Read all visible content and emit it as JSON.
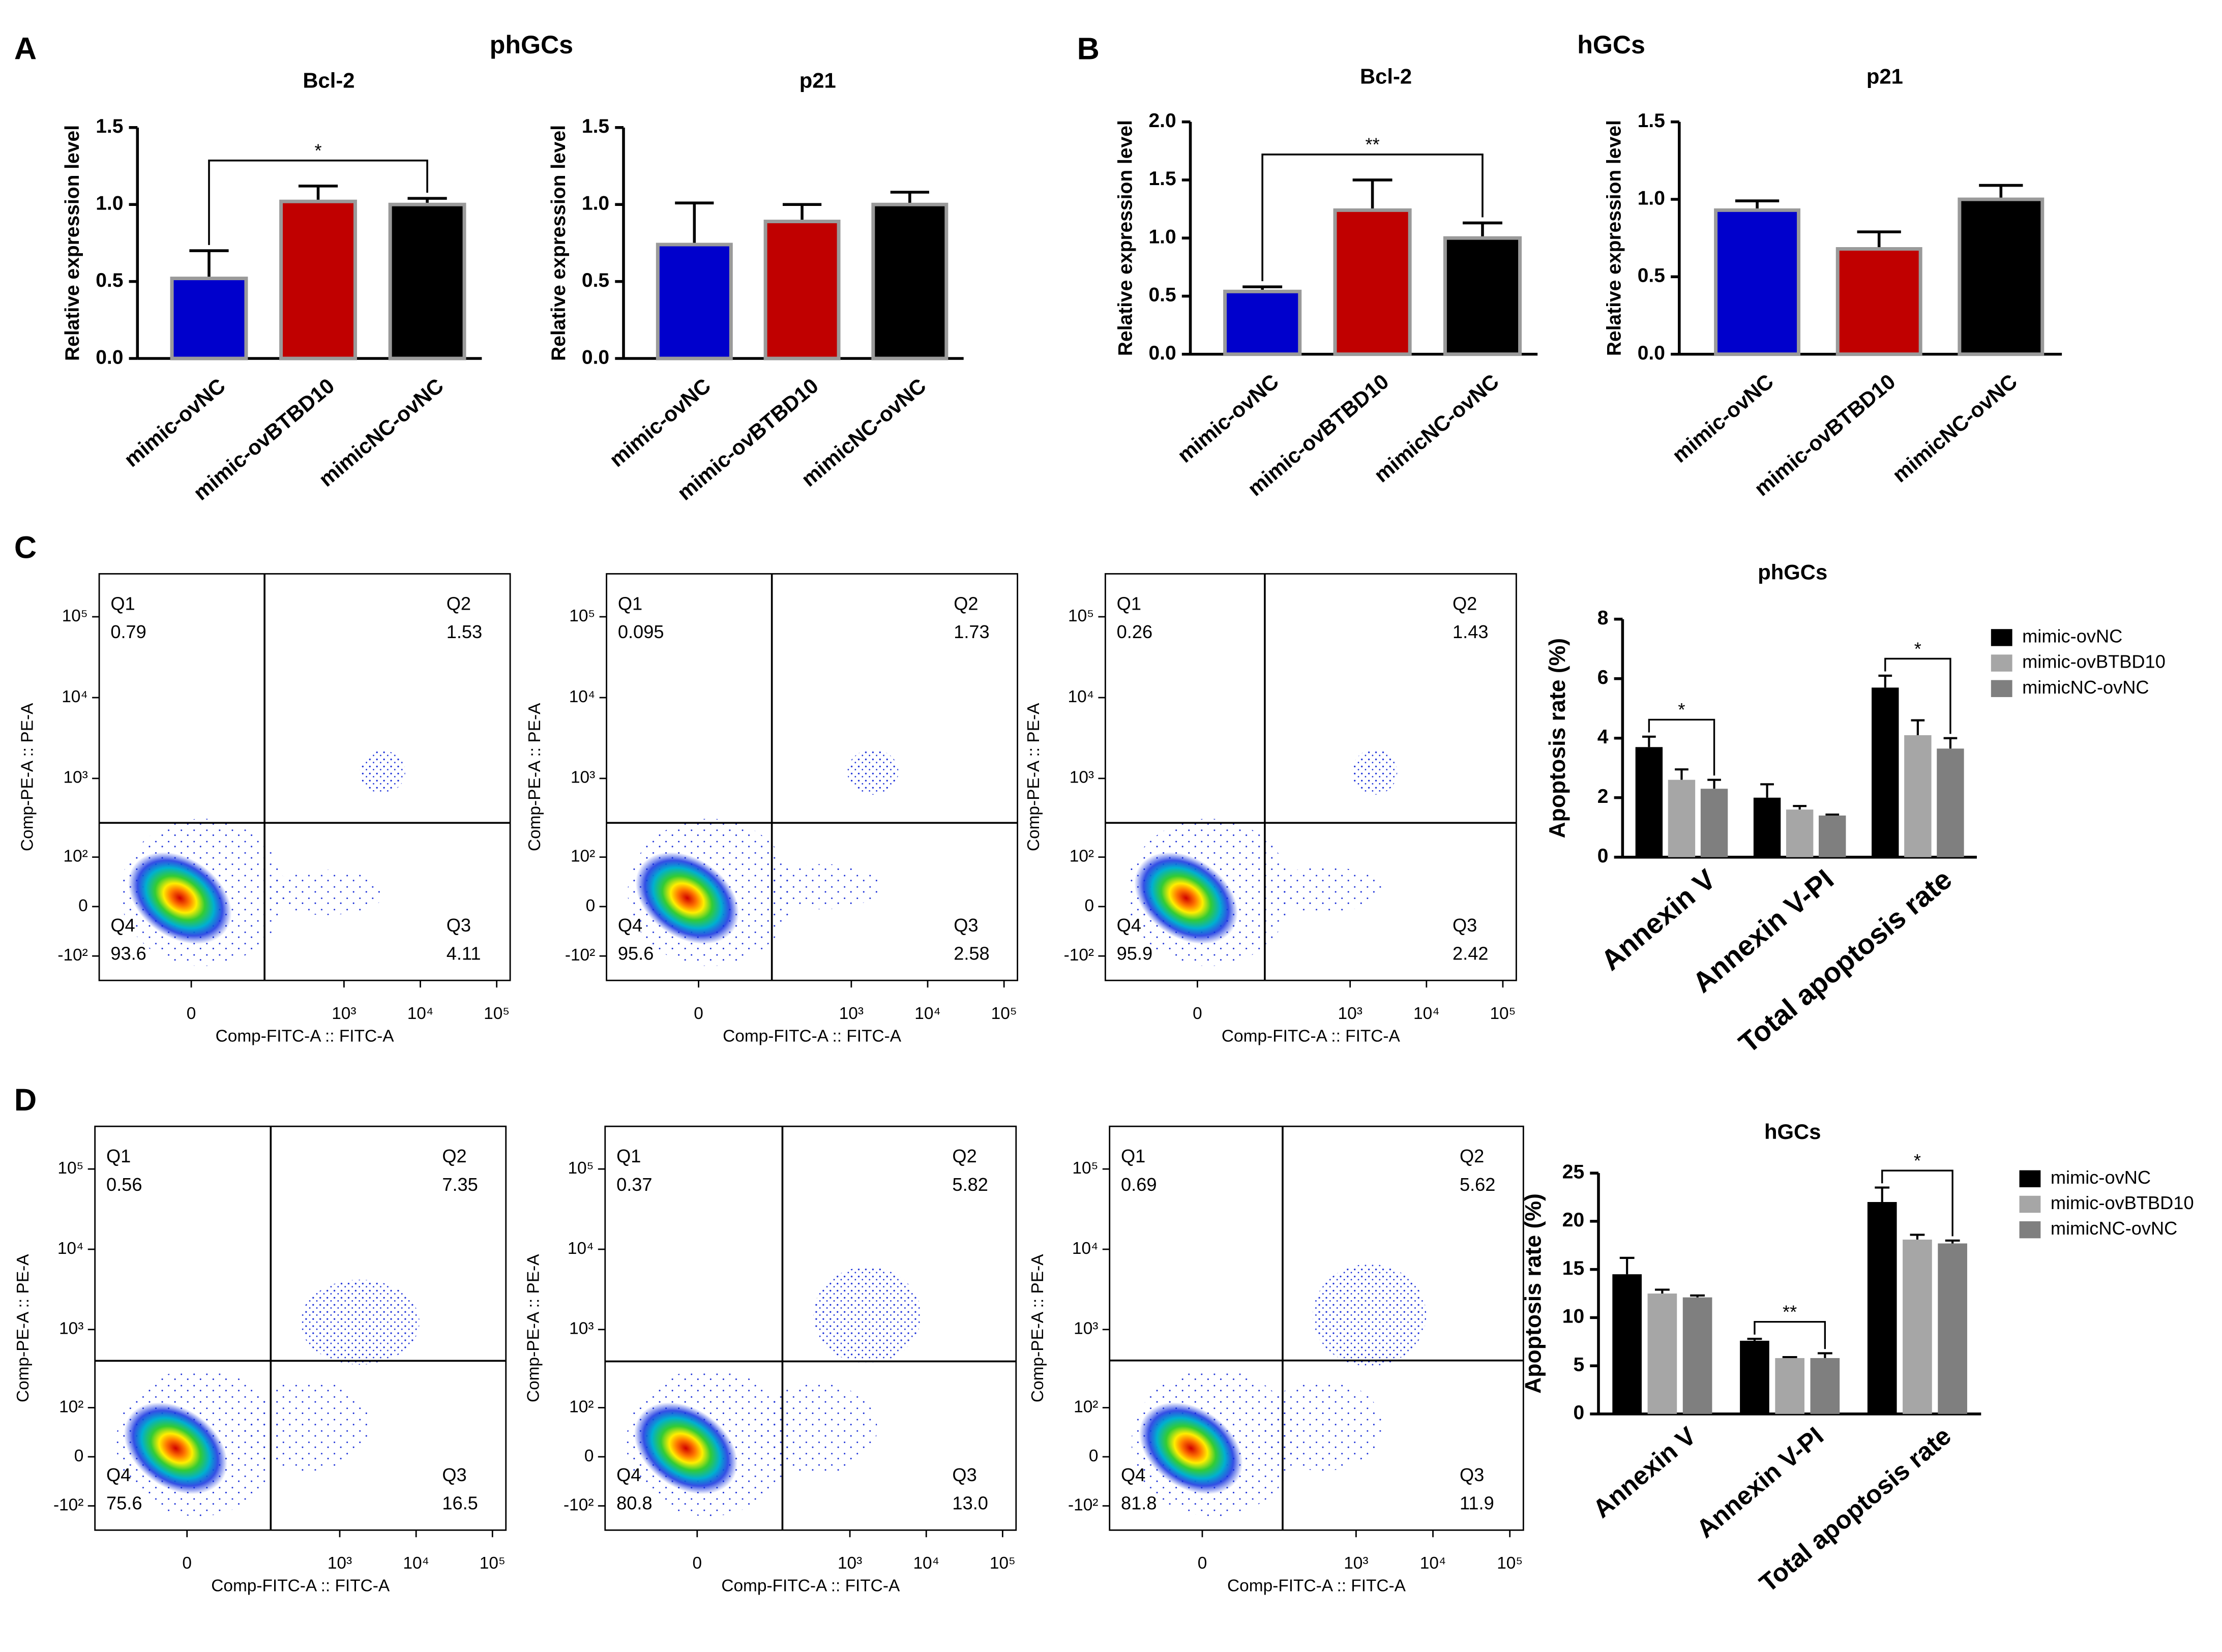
{
  "panels": [
    {
      "label": "A",
      "title": "phGCs"
    },
    {
      "label": "B",
      "title": "hGCs"
    },
    {
      "label": "C"
    },
    {
      "label": "D"
    }
  ],
  "chart_data": [
    {
      "type": "bar",
      "title": "Bcl-2",
      "ylabel": "Relative expression level",
      "categories": [
        "mimic-ovNC",
        "mimic-ovBTBD10",
        "mimicNC-ovNC"
      ],
      "values": [
        0.52,
        1.02,
        1.0
      ],
      "errors": [
        0.18,
        0.1,
        0.04
      ],
      "colors": [
        "#0000cc",
        "#c00000",
        "#000000"
      ],
      "ylim": [
        0,
        1.5
      ],
      "yticks": [
        {
          "value": 0,
          "label": "0.0"
        },
        {
          "value": 0.5,
          "label": "0.5"
        },
        {
          "value": 1,
          "label": "1.0"
        },
        {
          "value": 1.5,
          "label": "1.5"
        }
      ],
      "significance": [
        {
          "from": 0,
          "to": 2,
          "label": "*"
        }
      ]
    },
    {
      "type": "bar",
      "title": "p21",
      "ylabel": "Relative expression level",
      "categories": [
        "mimic-ovNC",
        "mimic-ovBTBD10",
        "mimicNC-ovNC"
      ],
      "values": [
        0.74,
        0.89,
        1.0
      ],
      "errors": [
        0.27,
        0.11,
        0.08
      ],
      "colors": [
        "#0000cc",
        "#c00000",
        "#000000"
      ],
      "ylim": [
        0,
        1.5
      ],
      "yticks": [
        {
          "value": 0,
          "label": "0.0"
        },
        {
          "value": 0.5,
          "label": "0.5"
        },
        {
          "value": 1,
          "label": "1.0"
        },
        {
          "value": 1.5,
          "label": "1.5"
        }
      ]
    },
    {
      "type": "bar",
      "title": "Bcl-2",
      "ylabel": "Relative expression level",
      "categories": [
        "mimic-ovNC",
        "mimic-ovBTBD10",
        "mimicNC-ovNC"
      ],
      "values": [
        0.54,
        1.24,
        1.0
      ],
      "errors": [
        0.04,
        0.26,
        0.13
      ],
      "colors": [
        "#0000cc",
        "#c00000",
        "#000000"
      ],
      "ylim": [
        0,
        2
      ],
      "yticks": [
        {
          "value": 0,
          "label": "0.0"
        },
        {
          "value": 0.5,
          "label": "0.5"
        },
        {
          "value": 1,
          "label": "1.0"
        },
        {
          "value": 1.5,
          "label": "1.5"
        },
        {
          "value": 2,
          "label": "2.0"
        }
      ],
      "significance": [
        {
          "from": 0,
          "to": 2,
          "label": "**"
        }
      ]
    },
    {
      "type": "bar",
      "title": "p21",
      "ylabel": "Relative expression level",
      "categories": [
        "mimic-ovNC",
        "mimic-ovBTBD10",
        "mimicNC-ovNC"
      ],
      "values": [
        0.93,
        0.68,
        1.0
      ],
      "errors": [
        0.06,
        0.11,
        0.09
      ],
      "colors": [
        "#0000cc",
        "#c00000",
        "#000000"
      ],
      "ylim": [
        0,
        1.5
      ],
      "yticks": [
        {
          "value": 0,
          "label": "0.0"
        },
        {
          "value": 0.5,
          "label": "0.5"
        },
        {
          "value": 1,
          "label": "1.0"
        },
        {
          "value": 1.5,
          "label": "1.5"
        }
      ]
    },
    {
      "type": "flow",
      "xlabel": "Comp-FITC-A :: FITC-A",
      "ylabel": "Comp-PE-A :: PE-A",
      "quadrants": [
        "Q1",
        "Q2",
        "Q3",
        "Q4"
      ],
      "values": [
        0.79,
        1.53,
        4.11,
        93.6
      ],
      "gate": [
        90,
        280
      ],
      "xlim": [
        -160,
        150000
      ],
      "ylim": [
        -210,
        340000
      ],
      "xticks": [
        0,
        {
          "value": 1000,
          "label": "10³"
        },
        {
          "value": 10000,
          "label": "10⁴"
        },
        {
          "value": 100000,
          "label": "10⁵"
        }
      ],
      "yticks": [
        {
          "value": -100,
          "label": "-10²"
        },
        0,
        {
          "value": 100,
          "label": "10²"
        },
        {
          "value": 1000,
          "label": "10³"
        },
        {
          "value": 10000,
          "label": "10⁴"
        },
        {
          "value": 100000,
          "label": "10⁵"
        }
      ]
    },
    {
      "type": "flow",
      "xlabel": "Comp-FITC-A :: FITC-A",
      "ylabel": "Comp-PE-A :: PE-A",
      "quadrants": [
        "Q1",
        "Q2",
        "Q3",
        "Q4"
      ],
      "values": [
        0.095,
        1.73,
        2.58,
        95.6
      ],
      "gate": [
        90,
        280
      ],
      "xlim": [
        -160,
        150000
      ],
      "ylim": [
        -210,
        340000
      ],
      "xticks": [
        0,
        {
          "value": 1000,
          "label": "10³"
        },
        {
          "value": 10000,
          "label": "10⁴"
        },
        {
          "value": 100000,
          "label": "10⁵"
        }
      ],
      "yticks": [
        {
          "value": -100,
          "label": "-10²"
        },
        0,
        {
          "value": 100,
          "label": "10²"
        },
        {
          "value": 1000,
          "label": "10³"
        },
        {
          "value": 10000,
          "label": "10⁴"
        },
        {
          "value": 100000,
          "label": "10⁵"
        }
      ]
    },
    {
      "type": "flow",
      "xlabel": "Comp-FITC-A :: FITC-A",
      "ylabel": "Comp-PE-A :: PE-A",
      "quadrants": [
        "Q1",
        "Q2",
        "Q3",
        "Q4"
      ],
      "values": [
        0.26,
        1.43,
        2.42,
        95.9
      ],
      "gate": [
        75,
        280
      ],
      "xlim": [
        -160,
        150000
      ],
      "ylim": [
        -210,
        340000
      ],
      "xticks": [
        0,
        {
          "value": 1000,
          "label": "10³"
        },
        {
          "value": 10000,
          "label": "10⁴"
        },
        {
          "value": 100000,
          "label": "10⁵"
        }
      ],
      "yticks": [
        {
          "value": -100,
          "label": "-10²"
        },
        0,
        {
          "value": 100,
          "label": "10²"
        },
        {
          "value": 1000,
          "label": "10³"
        },
        {
          "value": 10000,
          "label": "10⁴"
        },
        {
          "value": 100000,
          "label": "10⁵"
        }
      ]
    },
    {
      "type": "grouped_bar",
      "title": "phGCs",
      "ylabel": "Apoptosis rate (%)",
      "categories": [
        "Annexin V",
        "Annexin V-PI",
        "Total apoptosis rate"
      ],
      "ylim": [
        0,
        8
      ],
      "yticks": [
        0,
        2,
        4,
        6,
        8
      ],
      "series": [
        {
          "name": "mimic-ovNC",
          "color": "#000000",
          "values": [
            3.7,
            2.0,
            5.7
          ],
          "errors": [
            0.35,
            0.45,
            0.4
          ]
        },
        {
          "name": "mimic-ovBTBD10",
          "color": "#a6a6a6",
          "values": [
            2.6,
            1.6,
            4.1
          ],
          "errors": [
            0.35,
            0.12,
            0.5
          ]
        },
        {
          "name": "mimicNC-ovNC",
          "color": "#7f7f7f",
          "values": [
            2.3,
            1.4,
            3.65
          ],
          "errors": [
            0.3,
            0.03,
            0.35
          ]
        }
      ],
      "significance": [
        {
          "category": 0,
          "from": 0,
          "to": 2,
          "label": "*"
        },
        {
          "category": 2,
          "from": 0,
          "to": 2,
          "label": "*"
        }
      ]
    },
    {
      "type": "flow",
      "xlabel": "Comp-FITC-A :: FITC-A",
      "ylabel": "Comp-PE-A :: PE-A",
      "quadrants": [
        "Q1",
        "Q2",
        "Q3",
        "Q4"
      ],
      "values": [
        0.56,
        7.35,
        16.5,
        75.6
      ],
      "gate": [
        124,
        406
      ],
      "xlim": [
        -160,
        150000
      ],
      "ylim": [
        -210,
        340000
      ],
      "xticks": [
        0,
        {
          "value": 1000,
          "label": "10³"
        },
        {
          "value": 10000,
          "label": "10⁴"
        },
        {
          "value": 100000,
          "label": "10⁵"
        }
      ],
      "yticks": [
        {
          "value": -100,
          "label": "-10²"
        },
        0,
        {
          "value": 100,
          "label": "10²"
        },
        {
          "value": 1000,
          "label": "10³"
        },
        {
          "value": 10000,
          "label": "10⁴"
        },
        {
          "value": 100000,
          "label": "10⁵"
        }
      ]
    },
    {
      "type": "flow",
      "xlabel": "Comp-FITC-A :: FITC-A",
      "ylabel": "Comp-PE-A :: PE-A",
      "quadrants": [
        "Q1",
        "Q2",
        "Q3",
        "Q4"
      ],
      "values": [
        0.37,
        5.82,
        13.0,
        80.8
      ],
      "value_labels": [
        "0.37",
        "5.82",
        "13.0",
        "80.8"
      ],
      "gate": [
        130,
        400
      ],
      "xlim": [
        -160,
        150000
      ],
      "ylim": [
        -210,
        340000
      ],
      "xticks": [
        0,
        {
          "value": 1000,
          "label": "10³"
        },
        {
          "value": 10000,
          "label": "10⁴"
        },
        {
          "value": 100000,
          "label": "10⁵"
        }
      ],
      "yticks": [
        {
          "value": -100,
          "label": "-10²"
        },
        0,
        {
          "value": 100,
          "label": "10²"
        },
        {
          "value": 1000,
          "label": "10³"
        },
        {
          "value": 10000,
          "label": "10⁴"
        },
        {
          "value": 100000,
          "label": "10⁵"
        }
      ]
    },
    {
      "type": "flow",
      "xlabel": "Comp-FITC-A :: FITC-A",
      "ylabel": "Comp-PE-A :: PE-A",
      "quadrants": [
        "Q1",
        "Q2",
        "Q3",
        "Q4"
      ],
      "values": [
        0.69,
        5.62,
        11.9,
        81.8
      ],
      "gate": [
        110,
        410
      ],
      "xlim": [
        -160,
        150000
      ],
      "ylim": [
        -210,
        340000
      ],
      "xticks": [
        0,
        {
          "value": 1000,
          "label": "10³"
        },
        {
          "value": 10000,
          "label": "10⁴"
        },
        {
          "value": 100000,
          "label": "10⁵"
        }
      ],
      "yticks": [
        {
          "value": -100,
          "label": "-10²"
        },
        0,
        {
          "value": 100,
          "label": "10²"
        },
        {
          "value": 1000,
          "label": "10³"
        },
        {
          "value": 10000,
          "label": "10⁴"
        },
        {
          "value": 100000,
          "label": "10⁵"
        }
      ]
    },
    {
      "type": "grouped_bar",
      "title": "hGCs",
      "ylabel": "Apoptosis rate (%)",
      "categories": [
        "Annexin V",
        "Annexin V-PI",
        "Total apoptosis rate"
      ],
      "ylim": [
        0,
        25
      ],
      "yticks": [
        0,
        5,
        10,
        15,
        20,
        25
      ],
      "series": [
        {
          "name": "mimic-ovNC",
          "color": "#000000",
          "values": [
            14.5,
            7.6,
            22.0
          ],
          "errors": [
            1.7,
            0.2,
            1.5
          ]
        },
        {
          "name": "mimic-ovBTBD10",
          "color": "#a6a6a6",
          "values": [
            12.5,
            5.8,
            18.1
          ],
          "errors": [
            0.4,
            0.1,
            0.5
          ]
        },
        {
          "name": "mimicNC-ovNC",
          "color": "#7f7f7f",
          "values": [
            12.1,
            5.8,
            17.7
          ],
          "errors": [
            0.2,
            0.5,
            0.3
          ]
        }
      ],
      "significance": [
        {
          "category": 1,
          "from": 0,
          "to": 2,
          "label": "**"
        },
        {
          "category": 2,
          "from": 0,
          "to": 2,
          "label": "*"
        }
      ]
    }
  ]
}
